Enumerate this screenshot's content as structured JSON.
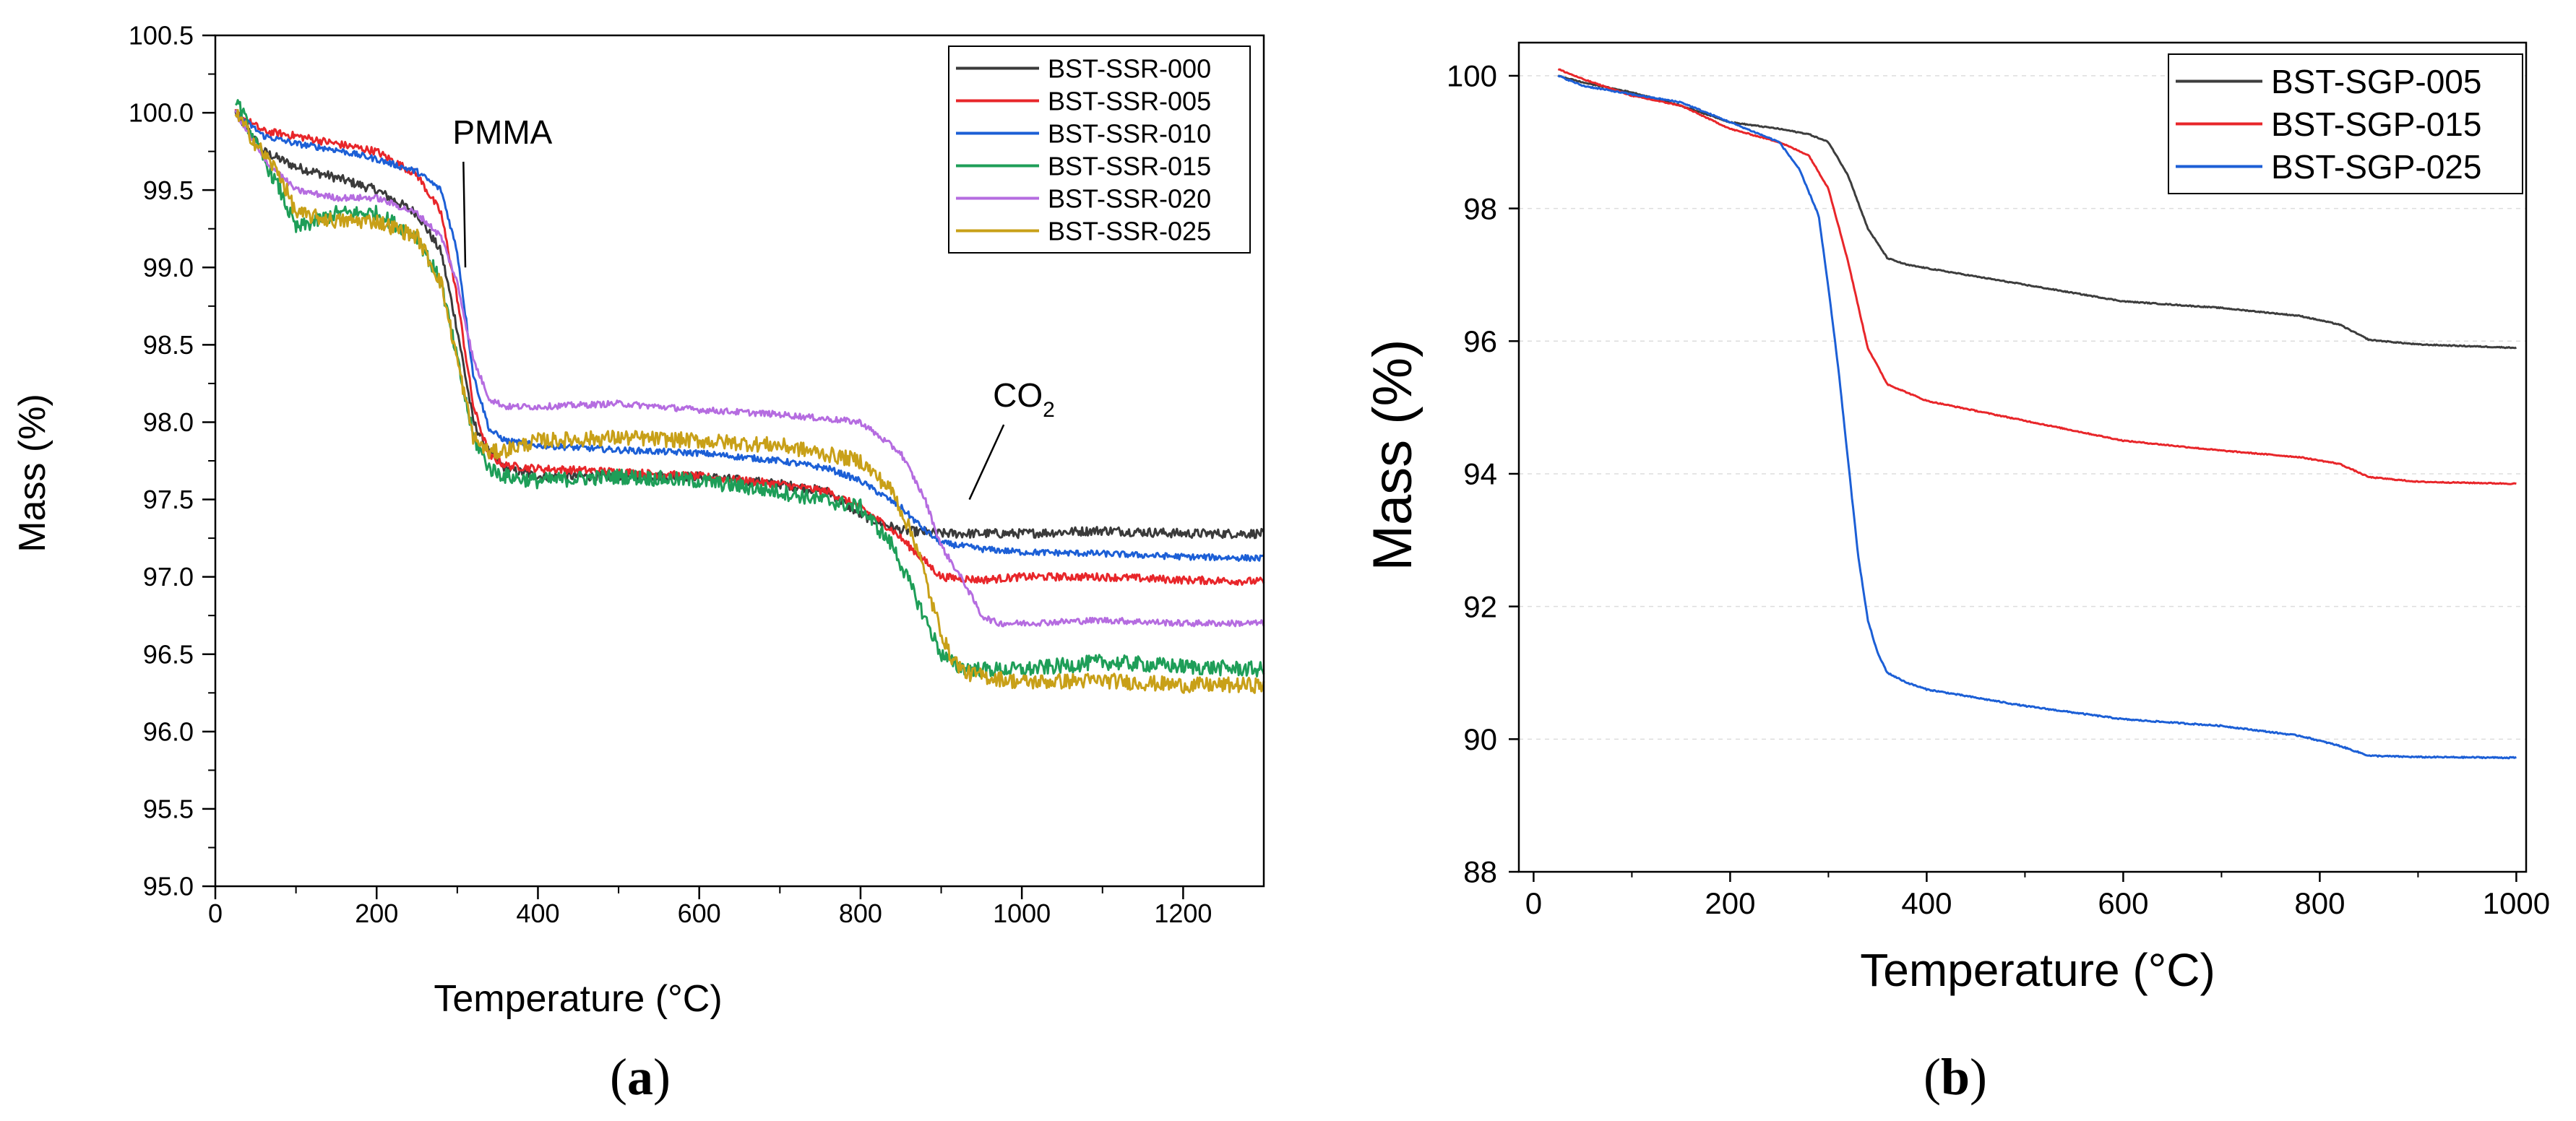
{
  "chart_data": [
    {
      "type": "line",
      "panel": "a",
      "caption_open": "(",
      "caption_letter": "a",
      "caption_close": ")",
      "xlabel": "Temperature (°C)",
      "ylabel": "Mass (%)",
      "xlim": [
        0,
        1300
      ],
      "ylim": [
        95.0,
        100.5
      ],
      "x_ticks": [
        0,
        200,
        400,
        600,
        800,
        1000,
        1200
      ],
      "y_ticks": [
        95.0,
        95.5,
        96.0,
        96.5,
        97.0,
        97.5,
        98.0,
        98.5,
        99.0,
        99.5,
        100.0,
        100.5
      ],
      "y_tick_labels": [
        "95.0",
        "95.5",
        "96.0",
        "96.5",
        "97.0",
        "97.5",
        "98.0",
        "98.5",
        "99.0",
        "99.5",
        "100.0",
        "100.5"
      ],
      "legend_position": "top-right",
      "annotations": [
        {
          "text": "PMMA",
          "x": 330,
          "y": 99.8,
          "arrow_to": [
            310,
            99.0
          ]
        },
        {
          "text": "CO",
          "subscript": "2",
          "x": 1000,
          "y": 98.1,
          "arrow_to": [
            935,
            97.5
          ]
        }
      ],
      "series": [
        {
          "name": "BST-SSR-000",
          "color": "#3a3a3a",
          "noise": 0.03,
          "x": [
            25,
            60,
            100,
            150,
            200,
            250,
            280,
            300,
            320,
            340,
            360,
            400,
            500,
            600,
            700,
            760,
            800,
            850,
            900,
            1000,
            1100,
            1200,
            1300
          ],
          "y": [
            100.0,
            99.75,
            99.65,
            99.58,
            99.5,
            99.35,
            99.1,
            98.6,
            98.0,
            97.8,
            97.7,
            97.65,
            97.65,
            97.65,
            97.6,
            97.55,
            97.4,
            97.3,
            97.28,
            97.28,
            97.3,
            97.28,
            97.28
          ]
        },
        {
          "name": "BST-SSR-005",
          "color": "#e8262a",
          "noise": 0.025,
          "x": [
            25,
            60,
            100,
            150,
            200,
            250,
            280,
            300,
            320,
            340,
            360,
            400,
            500,
            600,
            700,
            760,
            800,
            840,
            870,
            900,
            950,
            1000,
            1100,
            1200,
            1300
          ],
          "y": [
            100.0,
            99.88,
            99.85,
            99.8,
            99.75,
            99.6,
            99.35,
            98.8,
            98.1,
            97.78,
            97.72,
            97.7,
            97.68,
            97.65,
            97.6,
            97.55,
            97.45,
            97.3,
            97.15,
            97.0,
            96.98,
            97.0,
            97.0,
            96.98,
            96.97
          ]
        },
        {
          "name": "BST-SSR-010",
          "color": "#1c5fd6",
          "noise": 0.02,
          "x": [
            25,
            60,
            100,
            150,
            200,
            250,
            280,
            300,
            320,
            340,
            360,
            400,
            500,
            600,
            700,
            760,
            800,
            850,
            880,
            900,
            950,
            1000,
            1100,
            1200,
            1300
          ],
          "y": [
            100.0,
            99.85,
            99.8,
            99.76,
            99.7,
            99.62,
            99.5,
            99.1,
            98.3,
            97.95,
            97.88,
            97.85,
            97.82,
            97.8,
            97.75,
            97.7,
            97.62,
            97.45,
            97.3,
            97.22,
            97.18,
            97.16,
            97.15,
            97.13,
            97.12
          ]
        },
        {
          "name": "BST-SSR-015",
          "color": "#1e9e58",
          "noise": 0.05,
          "x": [
            25,
            50,
            80,
            100,
            150,
            200,
            250,
            280,
            300,
            320,
            340,
            360,
            400,
            500,
            600,
            700,
            800,
            840,
            870,
            900,
            920,
            950,
            1000,
            1100,
            1200,
            1300
          ],
          "y": [
            100.1,
            99.8,
            99.5,
            99.25,
            99.35,
            99.35,
            99.2,
            98.9,
            98.4,
            97.9,
            97.7,
            97.65,
            97.62,
            97.65,
            97.62,
            97.55,
            97.45,
            97.2,
            96.85,
            96.5,
            96.42,
            96.4,
            96.4,
            96.45,
            96.42,
            96.4
          ]
        },
        {
          "name": "BST-SSR-020",
          "color": "#b56ce0",
          "noise": 0.02,
          "x": [
            25,
            60,
            100,
            150,
            200,
            250,
            280,
            300,
            320,
            340,
            360,
            400,
            500,
            600,
            700,
            800,
            850,
            880,
            900,
            930,
            950,
            970,
            1000,
            1100,
            1200,
            1300
          ],
          "y": [
            100.0,
            99.7,
            99.5,
            99.45,
            99.45,
            99.35,
            99.2,
            98.9,
            98.4,
            98.15,
            98.1,
            98.1,
            98.12,
            98.08,
            98.05,
            98.0,
            97.8,
            97.5,
            97.2,
            96.95,
            96.75,
            96.7,
            96.7,
            96.72,
            96.7,
            96.7
          ]
        },
        {
          "name": "BST-SSR-025",
          "color": "#c8a018",
          "noise": 0.05,
          "x": [
            25,
            50,
            80,
            100,
            150,
            200,
            250,
            280,
            300,
            320,
            340,
            360,
            400,
            500,
            600,
            700,
            800,
            840,
            870,
            890,
            910,
            930,
            960,
            1000,
            1100,
            1200,
            1300
          ],
          "y": [
            100.0,
            99.8,
            99.6,
            99.35,
            99.3,
            99.3,
            99.2,
            98.9,
            98.4,
            97.9,
            97.8,
            97.82,
            97.88,
            97.9,
            97.88,
            97.85,
            97.75,
            97.55,
            97.2,
            96.8,
            96.5,
            96.38,
            96.35,
            96.32,
            96.33,
            96.3,
            96.3
          ]
        }
      ]
    },
    {
      "type": "line",
      "panel": "b",
      "caption_open": "(",
      "caption_letter": "b",
      "caption_close": ")",
      "xlabel": "Temperature (°C)",
      "ylabel": "Mass (%)",
      "xlim": [
        -15,
        1010
      ],
      "ylim": [
        88,
        100.5
      ],
      "x_ticks": [
        0,
        200,
        400,
        600,
        800,
        1000
      ],
      "y_ticks": [
        88,
        90,
        92,
        94,
        96,
        98,
        100
      ],
      "y_tick_labels": [
        "88",
        "90",
        "92",
        "94",
        "96",
        "98",
        "100"
      ],
      "legend_position": "top-right",
      "series": [
        {
          "name": "BST-SGP-005",
          "color": "#3d3d3d",
          "noise": 0.008,
          "x": [
            25,
            50,
            100,
            150,
            200,
            250,
            280,
            300,
            320,
            340,
            360,
            380,
            400,
            500,
            600,
            700,
            780,
            820,
            850,
            900,
            1000
          ],
          "y": [
            100.0,
            99.9,
            99.75,
            99.55,
            99.3,
            99.2,
            99.12,
            99.0,
            98.5,
            97.7,
            97.25,
            97.15,
            97.1,
            96.85,
            96.6,
            96.5,
            96.38,
            96.25,
            96.02,
            95.95,
            95.9
          ]
        },
        {
          "name": "BST-SGP-015",
          "color": "#e8262a",
          "noise": 0.008,
          "x": [
            25,
            50,
            100,
            150,
            200,
            250,
            280,
            300,
            320,
            340,
            360,
            400,
            500,
            600,
            700,
            780,
            820,
            850,
            900,
            1000
          ],
          "y": [
            100.1,
            99.95,
            99.7,
            99.55,
            99.2,
            99.0,
            98.8,
            98.3,
            97.2,
            95.9,
            95.35,
            95.1,
            94.8,
            94.5,
            94.35,
            94.25,
            94.15,
            93.95,
            93.88,
            93.85
          ]
        },
        {
          "name": "BST-SGP-025",
          "color": "#1c5fd6",
          "noise": 0.01,
          "x": [
            25,
            50,
            100,
            150,
            200,
            250,
            270,
            290,
            300,
            310,
            320,
            330,
            340,
            350,
            360,
            380,
            400,
            500,
            600,
            700,
            780,
            820,
            850,
            900,
            1000
          ],
          "y": [
            100.0,
            99.85,
            99.72,
            99.6,
            99.3,
            99.0,
            98.6,
            97.9,
            96.8,
            95.6,
            94.2,
            92.8,
            91.8,
            91.3,
            91.0,
            90.85,
            90.75,
            90.5,
            90.3,
            90.2,
            90.05,
            89.9,
            89.75,
            89.73,
            89.72
          ]
        }
      ]
    }
  ]
}
